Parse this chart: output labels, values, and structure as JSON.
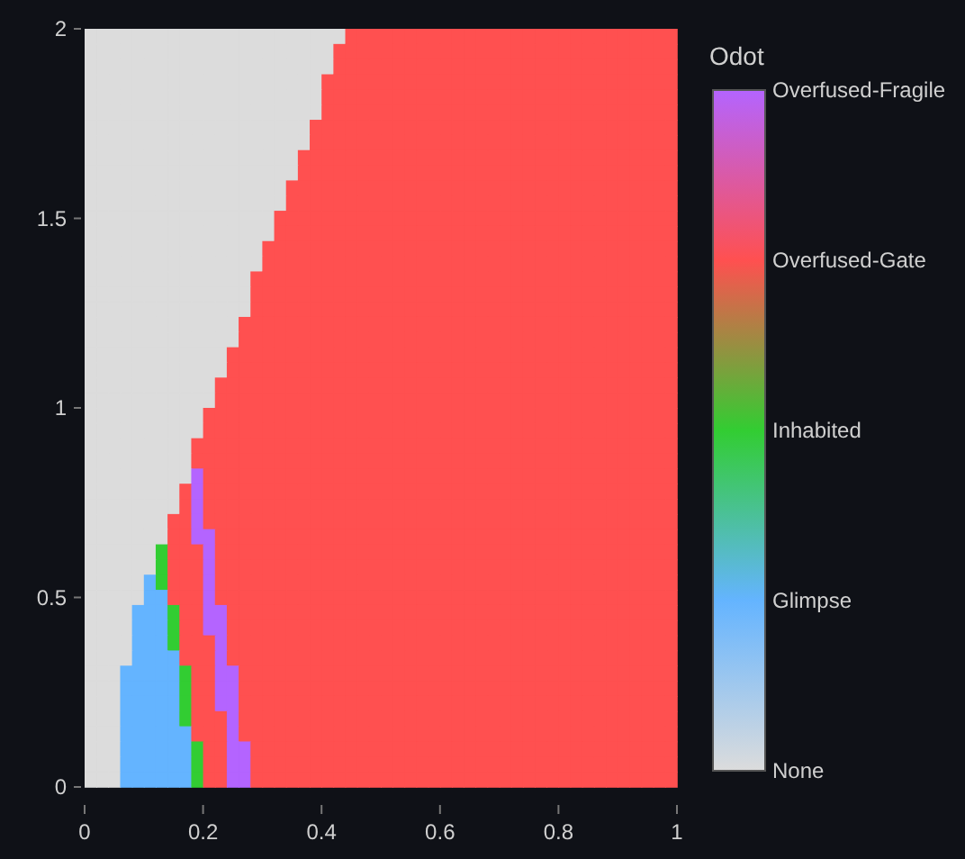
{
  "chart_data": {
    "type": "heatmap",
    "clabel": "Odot",
    "xlim": [
      0,
      1
    ],
    "ylim": [
      0,
      2
    ],
    "xticks": [
      0,
      0.2,
      0.4,
      0.6,
      0.8,
      1
    ],
    "yticks": [
      0,
      0.5,
      1,
      1.5,
      2
    ],
    "clim": [
      0,
      4
    ],
    "cticks": [
      {
        "value": 0,
        "label": "None"
      },
      {
        "value": 1,
        "label": "Glimpse"
      },
      {
        "value": 2,
        "label": "Inhabited"
      },
      {
        "value": 3,
        "label": "Overfused-Gate"
      },
      {
        "value": 4,
        "label": "Overfused-Fragile"
      }
    ],
    "colors": [
      "#dcdcdc",
      "#64b4ff",
      "#32cd32",
      "#ff5050",
      "#b464ff"
    ],
    "cells": [
      [
        0,
        0,
        0,
        0,
        0,
        0,
        0,
        0,
        0,
        0,
        0,
        0,
        0,
        0,
        0,
        0,
        0,
        0,
        0,
        0,
        0,
        0,
        3,
        3,
        3,
        3,
        3,
        3,
        3,
        3,
        3,
        3,
        3,
        3,
        3,
        3,
        3,
        3,
        3,
        3,
        3,
        3,
        3,
        3,
        3,
        3,
        3,
        3,
        3,
        3
      ],
      [
        0,
        0,
        0,
        0,
        0,
        0,
        0,
        0,
        0,
        0,
        0,
        0,
        0,
        0,
        0,
        0,
        0,
        0,
        0,
        0,
        0,
        3,
        3,
        3,
        3,
        3,
        3,
        3,
        3,
        3,
        3,
        3,
        3,
        3,
        3,
        3,
        3,
        3,
        3,
        3,
        3,
        3,
        3,
        3,
        3,
        3,
        3,
        3,
        3,
        3
      ],
      [
        0,
        0,
        0,
        0,
        0,
        0,
        0,
        0,
        0,
        0,
        0,
        0,
        0,
        0,
        0,
        0,
        0,
        0,
        0,
        0,
        0,
        3,
        3,
        3,
        3,
        3,
        3,
        3,
        3,
        3,
        3,
        3,
        3,
        3,
        3,
        3,
        3,
        3,
        3,
        3,
        3,
        3,
        3,
        3,
        3,
        3,
        3,
        3,
        3,
        3
      ],
      [
        0,
        0,
        0,
        0,
        0,
        0,
        0,
        0,
        0,
        0,
        0,
        0,
        0,
        0,
        0,
        0,
        0,
        0,
        0,
        0,
        3,
        3,
        3,
        3,
        3,
        3,
        3,
        3,
        3,
        3,
        3,
        3,
        3,
        3,
        3,
        3,
        3,
        3,
        3,
        3,
        3,
        3,
        3,
        3,
        3,
        3,
        3,
        3,
        3,
        3
      ],
      [
        0,
        0,
        0,
        0,
        0,
        0,
        0,
        0,
        0,
        0,
        0,
        0,
        0,
        0,
        0,
        0,
        0,
        0,
        0,
        0,
        3,
        3,
        3,
        3,
        3,
        3,
        3,
        3,
        3,
        3,
        3,
        3,
        3,
        3,
        3,
        3,
        3,
        3,
        3,
        3,
        3,
        3,
        3,
        3,
        3,
        3,
        3,
        3,
        3,
        3
      ],
      [
        0,
        0,
        0,
        0,
        0,
        0,
        0,
        0,
        0,
        0,
        0,
        0,
        0,
        0,
        0,
        0,
        0,
        0,
        0,
        0,
        3,
        3,
        3,
        3,
        3,
        3,
        3,
        3,
        3,
        3,
        3,
        3,
        3,
        3,
        3,
        3,
        3,
        3,
        3,
        3,
        3,
        3,
        3,
        3,
        3,
        3,
        3,
        3,
        3,
        3
      ],
      [
        0,
        0,
        0,
        0,
        0,
        0,
        0,
        0,
        0,
        0,
        0,
        0,
        0,
        0,
        0,
        0,
        0,
        0,
        0,
        3,
        3,
        3,
        3,
        3,
        3,
        3,
        3,
        3,
        3,
        3,
        3,
        3,
        3,
        3,
        3,
        3,
        3,
        3,
        3,
        3,
        3,
        3,
        3,
        3,
        3,
        3,
        3,
        3,
        3,
        3
      ],
      [
        0,
        0,
        0,
        0,
        0,
        0,
        0,
        0,
        0,
        0,
        0,
        0,
        0,
        0,
        0,
        0,
        0,
        0,
        0,
        3,
        3,
        3,
        3,
        3,
        3,
        3,
        3,
        3,
        3,
        3,
        3,
        3,
        3,
        3,
        3,
        3,
        3,
        3,
        3,
        3,
        3,
        3,
        3,
        3,
        3,
        3,
        3,
        3,
        3,
        3
      ],
      [
        0,
        0,
        0,
        0,
        0,
        0,
        0,
        0,
        0,
        0,
        0,
        0,
        0,
        0,
        0,
        0,
        0,
        0,
        3,
        3,
        3,
        3,
        3,
        3,
        3,
        3,
        3,
        3,
        3,
        3,
        3,
        3,
        3,
        3,
        3,
        3,
        3,
        3,
        3,
        3,
        3,
        3,
        3,
        3,
        3,
        3,
        3,
        3,
        3,
        3
      ],
      [
        0,
        0,
        0,
        0,
        0,
        0,
        0,
        0,
        0,
        0,
        0,
        0,
        0,
        0,
        0,
        0,
        0,
        0,
        3,
        3,
        3,
        3,
        3,
        3,
        3,
        3,
        3,
        3,
        3,
        3,
        3,
        3,
        3,
        3,
        3,
        3,
        3,
        3,
        3,
        3,
        3,
        3,
        3,
        3,
        3,
        3,
        3,
        3,
        3,
        3
      ],
      [
        0,
        0,
        0,
        0,
        0,
        0,
        0,
        0,
        0,
        0,
        0,
        0,
        0,
        0,
        0,
        0,
        0,
        3,
        3,
        3,
        3,
        3,
        3,
        3,
        3,
        3,
        3,
        3,
        3,
        3,
        3,
        3,
        3,
        3,
        3,
        3,
        3,
        3,
        3,
        3,
        3,
        3,
        3,
        3,
        3,
        3,
        3,
        3,
        3,
        3
      ],
      [
        0,
        0,
        0,
        0,
        0,
        0,
        0,
        0,
        0,
        0,
        0,
        0,
        0,
        0,
        0,
        0,
        0,
        3,
        3,
        3,
        3,
        3,
        3,
        3,
        3,
        3,
        3,
        3,
        3,
        3,
        3,
        3,
        3,
        3,
        3,
        3,
        3,
        3,
        3,
        3,
        3,
        3,
        3,
        3,
        3,
        3,
        3,
        3,
        3,
        3
      ],
      [
        0,
        0,
        0,
        0,
        0,
        0,
        0,
        0,
        0,
        0,
        0,
        0,
        0,
        0,
        0,
        0,
        3,
        3,
        3,
        3,
        3,
        3,
        3,
        3,
        3,
        3,
        3,
        3,
        3,
        3,
        3,
        3,
        3,
        3,
        3,
        3,
        3,
        3,
        3,
        3,
        3,
        3,
        3,
        3,
        3,
        3,
        3,
        3,
        3,
        3
      ],
      [
        0,
        0,
        0,
        0,
        0,
        0,
        0,
        0,
        0,
        0,
        0,
        0,
        0,
        0,
        0,
        0,
        3,
        3,
        3,
        3,
        3,
        3,
        3,
        3,
        3,
        3,
        3,
        3,
        3,
        3,
        3,
        3,
        3,
        3,
        3,
        3,
        3,
        3,
        3,
        3,
        3,
        3,
        3,
        3,
        3,
        3,
        3,
        3,
        3,
        3
      ],
      [
        0,
        0,
        0,
        0,
        0,
        0,
        0,
        0,
        0,
        0,
        0,
        0,
        0,
        0,
        0,
        3,
        3,
        3,
        3,
        3,
        3,
        3,
        3,
        3,
        3,
        3,
        3,
        3,
        3,
        3,
        3,
        3,
        3,
        3,
        3,
        3,
        3,
        3,
        3,
        3,
        3,
        3,
        3,
        3,
        3,
        3,
        3,
        3,
        3,
        3
      ],
      [
        0,
        0,
        0,
        0,
        0,
        0,
        0,
        0,
        0,
        0,
        0,
        0,
        0,
        0,
        0,
        3,
        3,
        3,
        3,
        3,
        3,
        3,
        3,
        3,
        3,
        3,
        3,
        3,
        3,
        3,
        3,
        3,
        3,
        3,
        3,
        3,
        3,
        3,
        3,
        3,
        3,
        3,
        3,
        3,
        3,
        3,
        3,
        3,
        3,
        3
      ],
      [
        0,
        0,
        0,
        0,
        0,
        0,
        0,
        0,
        0,
        0,
        0,
        0,
        0,
        0,
        3,
        3,
        3,
        3,
        3,
        3,
        3,
        3,
        3,
        3,
        3,
        3,
        3,
        3,
        3,
        3,
        3,
        3,
        3,
        3,
        3,
        3,
        3,
        3,
        3,
        3,
        3,
        3,
        3,
        3,
        3,
        3,
        3,
        3,
        3,
        3
      ],
      [
        0,
        0,
        0,
        0,
        0,
        0,
        0,
        0,
        0,
        0,
        0,
        0,
        0,
        0,
        3,
        3,
        3,
        3,
        3,
        3,
        3,
        3,
        3,
        3,
        3,
        3,
        3,
        3,
        3,
        3,
        3,
        3,
        3,
        3,
        3,
        3,
        3,
        3,
        3,
        3,
        3,
        3,
        3,
        3,
        3,
        3,
        3,
        3,
        3,
        3
      ],
      [
        0,
        0,
        0,
        0,
        0,
        0,
        0,
        0,
        0,
        0,
        0,
        0,
        0,
        0,
        3,
        3,
        3,
        3,
        3,
        3,
        3,
        3,
        3,
        3,
        3,
        3,
        3,
        3,
        3,
        3,
        3,
        3,
        3,
        3,
        3,
        3,
        3,
        3,
        3,
        3,
        3,
        3,
        3,
        3,
        3,
        3,
        3,
        3,
        3,
        3
      ],
      [
        0,
        0,
        0,
        0,
        0,
        0,
        0,
        0,
        0,
        0,
        0,
        0,
        0,
        3,
        3,
        3,
        3,
        3,
        3,
        3,
        3,
        3,
        3,
        3,
        3,
        3,
        3,
        3,
        3,
        3,
        3,
        3,
        3,
        3,
        3,
        3,
        3,
        3,
        3,
        3,
        3,
        3,
        3,
        3,
        3,
        3,
        3,
        3,
        3,
        3
      ],
      [
        0,
        0,
        0,
        0,
        0,
        0,
        0,
        0,
        0,
        0,
        0,
        0,
        0,
        3,
        3,
        3,
        3,
        3,
        3,
        3,
        3,
        3,
        3,
        3,
        3,
        3,
        3,
        3,
        3,
        3,
        3,
        3,
        3,
        3,
        3,
        3,
        3,
        3,
        3,
        3,
        3,
        3,
        3,
        3,
        3,
        3,
        3,
        3,
        3,
        3
      ],
      [
        0,
        0,
        0,
        0,
        0,
        0,
        0,
        0,
        0,
        0,
        0,
        0,
        3,
        3,
        3,
        3,
        3,
        3,
        3,
        3,
        3,
        3,
        3,
        3,
        3,
        3,
        3,
        3,
        3,
        3,
        3,
        3,
        3,
        3,
        3,
        3,
        3,
        3,
        3,
        3,
        3,
        3,
        3,
        3,
        3,
        3,
        3,
        3,
        3,
        3
      ],
      [
        0,
        0,
        0,
        0,
        0,
        0,
        0,
        0,
        0,
        0,
        0,
        0,
        3,
        3,
        3,
        3,
        3,
        3,
        3,
        3,
        3,
        3,
        3,
        3,
        3,
        3,
        3,
        3,
        3,
        3,
        3,
        3,
        3,
        3,
        3,
        3,
        3,
        3,
        3,
        3,
        3,
        3,
        3,
        3,
        3,
        3,
        3,
        3,
        3,
        3
      ],
      [
        0,
        0,
        0,
        0,
        0,
        0,
        0,
        0,
        0,
        0,
        0,
        3,
        3,
        3,
        3,
        3,
        3,
        3,
        3,
        3,
        3,
        3,
        3,
        3,
        3,
        3,
        3,
        3,
        3,
        3,
        3,
        3,
        3,
        3,
        3,
        3,
        3,
        3,
        3,
        3,
        3,
        3,
        3,
        3,
        3,
        3,
        3,
        3,
        3,
        3
      ],
      [
        0,
        0,
        0,
        0,
        0,
        0,
        0,
        0,
        0,
        0,
        0,
        3,
        3,
        3,
        3,
        3,
        3,
        3,
        3,
        3,
        3,
        3,
        3,
        3,
        3,
        3,
        3,
        3,
        3,
        3,
        3,
        3,
        3,
        3,
        3,
        3,
        3,
        3,
        3,
        3,
        3,
        3,
        3,
        3,
        3,
        3,
        3,
        3,
        3,
        3
      ],
      [
        0,
        0,
        0,
        0,
        0,
        0,
        0,
        0,
        0,
        0,
        3,
        3,
        3,
        3,
        3,
        3,
        3,
        3,
        3,
        3,
        3,
        3,
        3,
        3,
        3,
        3,
        3,
        3,
        3,
        3,
        3,
        3,
        3,
        3,
        3,
        3,
        3,
        3,
        3,
        3,
        3,
        3,
        3,
        3,
        3,
        3,
        3,
        3,
        3,
        3
      ],
      [
        0,
        0,
        0,
        0,
        0,
        0,
        0,
        0,
        0,
        0,
        3,
        3,
        3,
        3,
        3,
        3,
        3,
        3,
        3,
        3,
        3,
        3,
        3,
        3,
        3,
        3,
        3,
        3,
        3,
        3,
        3,
        3,
        3,
        3,
        3,
        3,
        3,
        3,
        3,
        3,
        3,
        3,
        3,
        3,
        3,
        3,
        3,
        3,
        3,
        3
      ],
      [
        0,
        0,
        0,
        0,
        0,
        0,
        0,
        0,
        0,
        3,
        3,
        3,
        3,
        3,
        3,
        3,
        3,
        3,
        3,
        3,
        3,
        3,
        3,
        3,
        3,
        3,
        3,
        3,
        3,
        3,
        3,
        3,
        3,
        3,
        3,
        3,
        3,
        3,
        3,
        3,
        3,
        3,
        3,
        3,
        3,
        3,
        3,
        3,
        3,
        3
      ],
      [
        0,
        0,
        0,
        0,
        0,
        0,
        0,
        0,
        0,
        3,
        3,
        3,
        3,
        3,
        3,
        3,
        3,
        3,
        3,
        3,
        3,
        3,
        3,
        3,
        3,
        3,
        3,
        3,
        3,
        3,
        3,
        3,
        3,
        3,
        3,
        3,
        3,
        3,
        3,
        3,
        3,
        3,
        3,
        3,
        3,
        3,
        3,
        3,
        3,
        3
      ],
      [
        0,
        0,
        0,
        0,
        0,
        0,
        0,
        0,
        0,
        4,
        3,
        3,
        3,
        3,
        3,
        3,
        3,
        3,
        3,
        3,
        3,
        3,
        3,
        3,
        3,
        3,
        3,
        3,
        3,
        3,
        3,
        3,
        3,
        3,
        3,
        3,
        3,
        3,
        3,
        3,
        3,
        3,
        3,
        3,
        3,
        3,
        3,
        3,
        3,
        3
      ],
      [
        0,
        0,
        0,
        0,
        0,
        0,
        0,
        0,
        3,
        4,
        3,
        3,
        3,
        3,
        3,
        3,
        3,
        3,
        3,
        3,
        3,
        3,
        3,
        3,
        3,
        3,
        3,
        3,
        3,
        3,
        3,
        3,
        3,
        3,
        3,
        3,
        3,
        3,
        3,
        3,
        3,
        3,
        3,
        3,
        3,
        3,
        3,
        3,
        3,
        3
      ],
      [
        0,
        0,
        0,
        0,
        0,
        0,
        0,
        0,
        3,
        4,
        3,
        3,
        3,
        3,
        3,
        3,
        3,
        3,
        3,
        3,
        3,
        3,
        3,
        3,
        3,
        3,
        3,
        3,
        3,
        3,
        3,
        3,
        3,
        3,
        3,
        3,
        3,
        3,
        3,
        3,
        3,
        3,
        3,
        3,
        3,
        3,
        3,
        3,
        3,
        3
      ],
      [
        0,
        0,
        0,
        0,
        0,
        0,
        0,
        3,
        3,
        4,
        3,
        3,
        3,
        3,
        3,
        3,
        3,
        3,
        3,
        3,
        3,
        3,
        3,
        3,
        3,
        3,
        3,
        3,
        3,
        3,
        3,
        3,
        3,
        3,
        3,
        3,
        3,
        3,
        3,
        3,
        3,
        3,
        3,
        3,
        3,
        3,
        3,
        3,
        3,
        3
      ],
      [
        0,
        0,
        0,
        0,
        0,
        0,
        0,
        3,
        3,
        4,
        4,
        3,
        3,
        3,
        3,
        3,
        3,
        3,
        3,
        3,
        3,
        3,
        3,
        3,
        3,
        3,
        3,
        3,
        3,
        3,
        3,
        3,
        3,
        3,
        3,
        3,
        3,
        3,
        3,
        3,
        3,
        3,
        3,
        3,
        3,
        3,
        3,
        3,
        3,
        3
      ],
      [
        0,
        0,
        0,
        0,
        0,
        0,
        2,
        3,
        3,
        3,
        4,
        3,
        3,
        3,
        3,
        3,
        3,
        3,
        3,
        3,
        3,
        3,
        3,
        3,
        3,
        3,
        3,
        3,
        3,
        3,
        3,
        3,
        3,
        3,
        3,
        3,
        3,
        3,
        3,
        3,
        3,
        3,
        3,
        3,
        3,
        3,
        3,
        3,
        3,
        3
      ],
      [
        0,
        0,
        0,
        0,
        0,
        0,
        2,
        3,
        3,
        3,
        4,
        3,
        3,
        3,
        3,
        3,
        3,
        3,
        3,
        3,
        3,
        3,
        3,
        3,
        3,
        3,
        3,
        3,
        3,
        3,
        3,
        3,
        3,
        3,
        3,
        3,
        3,
        3,
        3,
        3,
        3,
        3,
        3,
        3,
        3,
        3,
        3,
        3,
        3,
        3
      ],
      [
        0,
        0,
        0,
        0,
        0,
        1,
        2,
        3,
        3,
        3,
        4,
        3,
        3,
        3,
        3,
        3,
        3,
        3,
        3,
        3,
        3,
        3,
        3,
        3,
        3,
        3,
        3,
        3,
        3,
        3,
        3,
        3,
        3,
        3,
        3,
        3,
        3,
        3,
        3,
        3,
        3,
        3,
        3,
        3,
        3,
        3,
        3,
        3,
        3,
        3
      ],
      [
        0,
        0,
        0,
        0,
        0,
        1,
        1,
        3,
        3,
        3,
        4,
        3,
        3,
        3,
        3,
        3,
        3,
        3,
        3,
        3,
        3,
        3,
        3,
        3,
        3,
        3,
        3,
        3,
        3,
        3,
        3,
        3,
        3,
        3,
        3,
        3,
        3,
        3,
        3,
        3,
        3,
        3,
        3,
        3,
        3,
        3,
        3,
        3,
        3,
        3
      ],
      [
        0,
        0,
        0,
        0,
        1,
        1,
        1,
        2,
        3,
        3,
        4,
        4,
        3,
        3,
        3,
        3,
        3,
        3,
        3,
        3,
        3,
        3,
        3,
        3,
        3,
        3,
        3,
        3,
        3,
        3,
        3,
        3,
        3,
        3,
        3,
        3,
        3,
        3,
        3,
        3,
        3,
        3,
        3,
        3,
        3,
        3,
        3,
        3,
        3,
        3
      ],
      [
        0,
        0,
        0,
        0,
        1,
        1,
        1,
        2,
        3,
        3,
        4,
        4,
        3,
        3,
        3,
        3,
        3,
        3,
        3,
        3,
        3,
        3,
        3,
        3,
        3,
        3,
        3,
        3,
        3,
        3,
        3,
        3,
        3,
        3,
        3,
        3,
        3,
        3,
        3,
        3,
        3,
        3,
        3,
        3,
        3,
        3,
        3,
        3,
        3,
        3
      ],
      [
        0,
        0,
        0,
        0,
        1,
        1,
        1,
        2,
        3,
        3,
        3,
        4,
        3,
        3,
        3,
        3,
        3,
        3,
        3,
        3,
        3,
        3,
        3,
        3,
        3,
        3,
        3,
        3,
        3,
        3,
        3,
        3,
        3,
        3,
        3,
        3,
        3,
        3,
        3,
        3,
        3,
        3,
        3,
        3,
        3,
        3,
        3,
        3,
        3,
        3
      ],
      [
        0,
        0,
        0,
        0,
        1,
        1,
        1,
        1,
        3,
        3,
        3,
        4,
        3,
        3,
        3,
        3,
        3,
        3,
        3,
        3,
        3,
        3,
        3,
        3,
        3,
        3,
        3,
        3,
        3,
        3,
        3,
        3,
        3,
        3,
        3,
        3,
        3,
        3,
        3,
        3,
        3,
        3,
        3,
        3,
        3,
        3,
        3,
        3,
        3,
        3
      ],
      [
        0,
        0,
        0,
        1,
        1,
        1,
        1,
        1,
        2,
        3,
        3,
        4,
        4,
        3,
        3,
        3,
        3,
        3,
        3,
        3,
        3,
        3,
        3,
        3,
        3,
        3,
        3,
        3,
        3,
        3,
        3,
        3,
        3,
        3,
        3,
        3,
        3,
        3,
        3,
        3,
        3,
        3,
        3,
        3,
        3,
        3,
        3,
        3,
        3,
        3
      ],
      [
        0,
        0,
        0,
        1,
        1,
        1,
        1,
        1,
        2,
        3,
        3,
        4,
        4,
        3,
        3,
        3,
        3,
        3,
        3,
        3,
        3,
        3,
        3,
        3,
        3,
        3,
        3,
        3,
        3,
        3,
        3,
        3,
        3,
        3,
        3,
        3,
        3,
        3,
        3,
        3,
        3,
        3,
        3,
        3,
        3,
        3,
        3,
        3,
        3,
        3
      ],
      [
        0,
        0,
        0,
        1,
        1,
        1,
        1,
        1,
        2,
        3,
        3,
        4,
        4,
        3,
        3,
        3,
        3,
        3,
        3,
        3,
        3,
        3,
        3,
        3,
        3,
        3,
        3,
        3,
        3,
        3,
        3,
        3,
        3,
        3,
        3,
        3,
        3,
        3,
        3,
        3,
        3,
        3,
        3,
        3,
        3,
        3,
        3,
        3,
        3,
        3
      ],
      [
        0,
        0,
        0,
        1,
        1,
        1,
        1,
        1,
        2,
        3,
        3,
        3,
        4,
        3,
        3,
        3,
        3,
        3,
        3,
        3,
        3,
        3,
        3,
        3,
        3,
        3,
        3,
        3,
        3,
        3,
        3,
        3,
        3,
        3,
        3,
        3,
        3,
        3,
        3,
        3,
        3,
        3,
        3,
        3,
        3,
        3,
        3,
        3,
        3,
        3
      ],
      [
        0,
        0,
        0,
        1,
        1,
        1,
        1,
        1,
        1,
        3,
        3,
        3,
        4,
        3,
        3,
        3,
        3,
        3,
        3,
        3,
        3,
        3,
        3,
        3,
        3,
        3,
        3,
        3,
        3,
        3,
        3,
        3,
        3,
        3,
        3,
        3,
        3,
        3,
        3,
        3,
        3,
        3,
        3,
        3,
        3,
        3,
        3,
        3,
        3,
        3
      ],
      [
        0,
        0,
        0,
        1,
        1,
        1,
        1,
        1,
        1,
        2,
        3,
        3,
        4,
        4,
        3,
        3,
        3,
        3,
        3,
        3,
        3,
        3,
        3,
        3,
        3,
        3,
        3,
        3,
        3,
        3,
        3,
        3,
        3,
        3,
        3,
        3,
        3,
        3,
        3,
        3,
        3,
        3,
        3,
        3,
        3,
        3,
        3,
        3,
        3,
        3
      ],
      [
        0,
        0,
        0,
        1,
        1,
        1,
        1,
        1,
        1,
        2,
        3,
        3,
        4,
        4,
        3,
        3,
        3,
        3,
        3,
        3,
        3,
        3,
        3,
        3,
        3,
        3,
        3,
        3,
        3,
        3,
        3,
        3,
        3,
        3,
        3,
        3,
        3,
        3,
        3,
        3,
        3,
        3,
        3,
        3,
        3,
        3,
        3,
        3,
        3,
        3
      ],
      [
        0,
        0,
        0,
        1,
        1,
        1,
        1,
        1,
        1,
        2,
        3,
        3,
        4,
        4,
        3,
        3,
        3,
        3,
        3,
        3,
        3,
        3,
        3,
        3,
        3,
        3,
        3,
        3,
        3,
        3,
        3,
        3,
        3,
        3,
        3,
        3,
        3,
        3,
        3,
        3,
        3,
        3,
        3,
        3,
        3,
        3,
        3,
        3,
        3,
        3
      ]
    ]
  }
}
